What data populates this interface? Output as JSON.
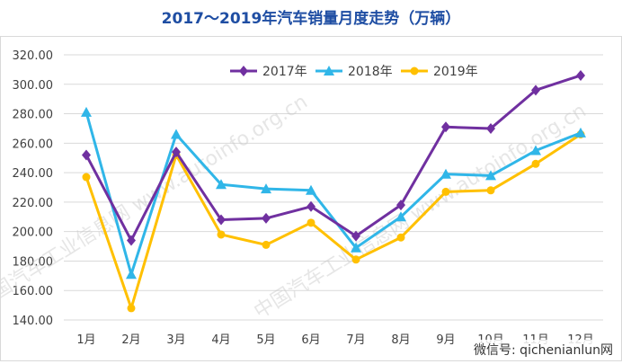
{
  "chart_data": {
    "type": "line",
    "title": "2017～2019年汽车销量月度走势（万辆）",
    "categories": [
      "1月",
      "2月",
      "3月",
      "4月",
      "5月",
      "6月",
      "7月",
      "8月",
      "9月",
      "10月",
      "11月",
      "12月"
    ],
    "series": [
      {
        "name": "2017年",
        "color": "#7030a0",
        "marker": "diamond",
        "values": [
          252,
          194,
          254,
          208,
          209,
          217,
          197,
          218,
          271,
          270,
          296,
          306
        ]
      },
      {
        "name": "2018年",
        "color": "#30b6e8",
        "marker": "triangle",
        "values": [
          281,
          171,
          266,
          232,
          229,
          228,
          189,
          210,
          239,
          238,
          255,
          267
        ]
      },
      {
        "name": "2019年",
        "color": "#ffc000",
        "marker": "circle",
        "values": [
          237,
          148,
          252,
          198,
          191,
          206,
          181,
          196,
          227,
          228,
          246,
          266
        ]
      }
    ],
    "ylim": [
      140,
      320
    ],
    "yticks": [
      140,
      160,
      180,
      200,
      220,
      240,
      260,
      280,
      300,
      320
    ],
    "ytick_labels": [
      "140.00",
      "160.00",
      "180.00",
      "200.00",
      "220.00",
      "240.00",
      "260.00",
      "280.00",
      "300.00",
      "320.00"
    ],
    "grid": true,
    "legend_position": "top"
  },
  "watermark": {
    "diagonal_text": "中国汽车工业信息网 www.autoinfo.org.cn",
    "corner_text": "微信号: qichenianlun网"
  }
}
